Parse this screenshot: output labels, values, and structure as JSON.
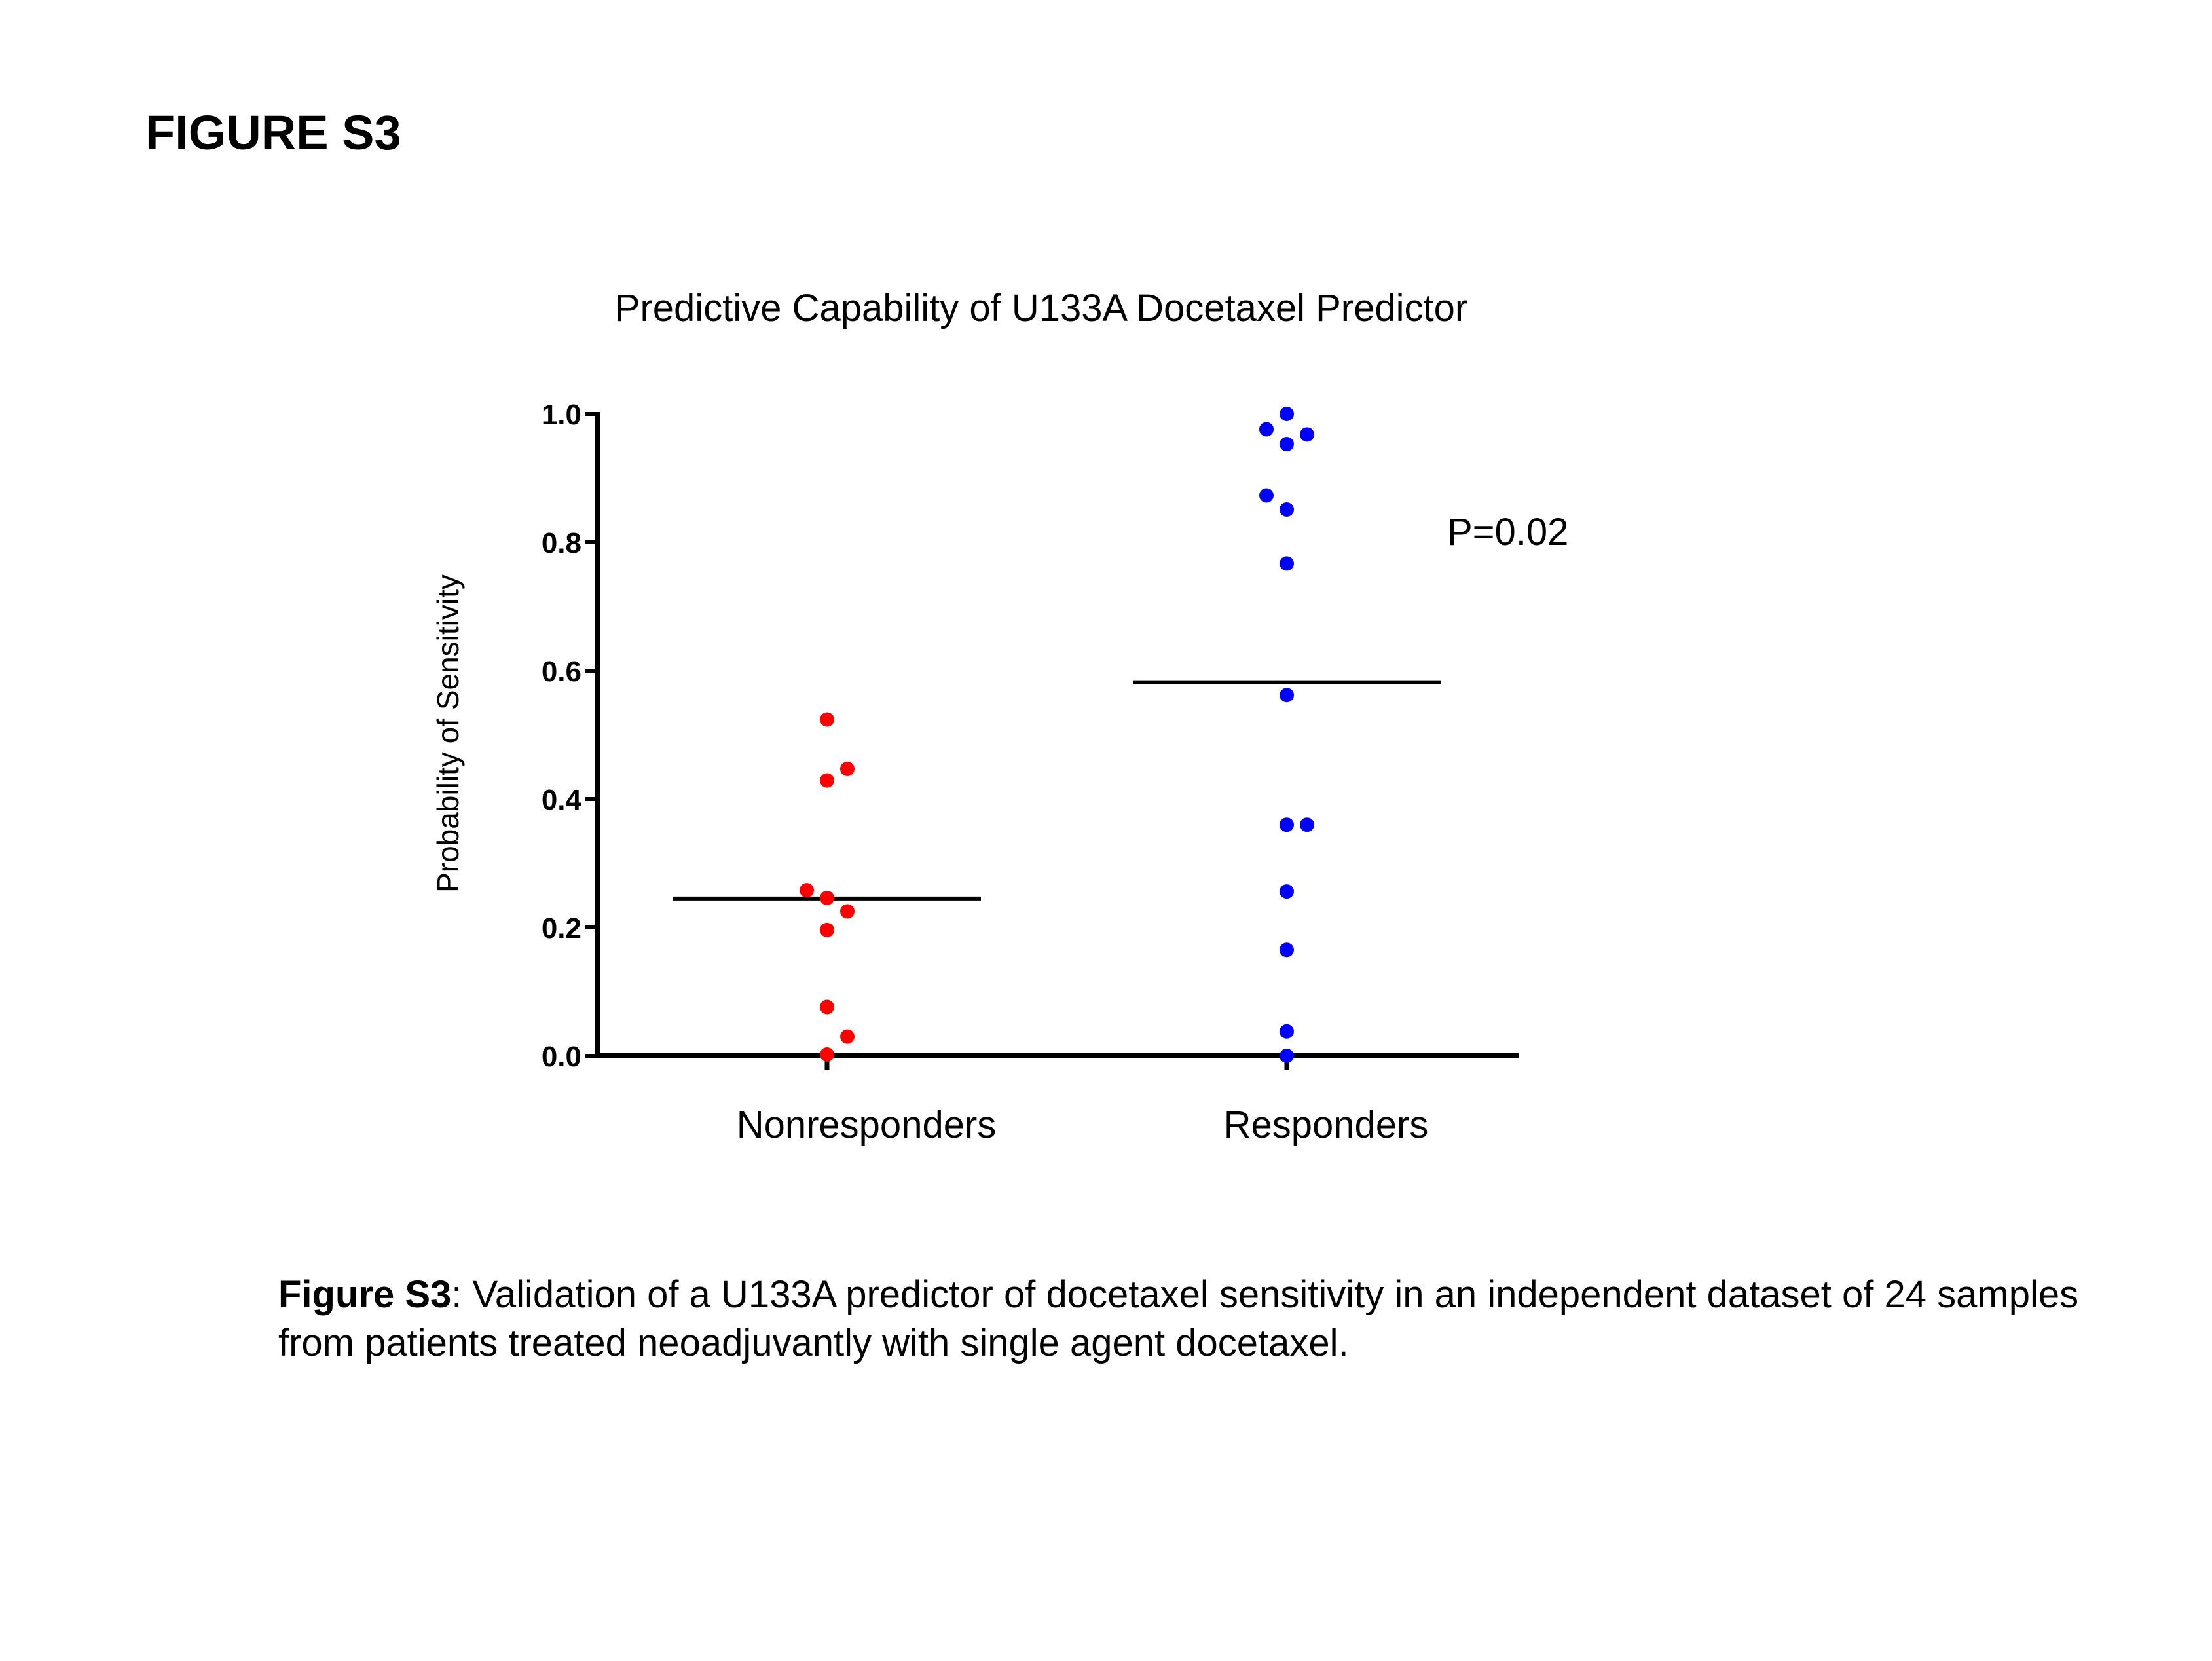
{
  "figure_label": "FIGURE S3",
  "caption": {
    "label": "Figure S3",
    "text": ": Validation of a U133A predictor of docetaxel sensitivity in an independent dataset of 24 samples from patients treated neoadjuvantly with single agent docetaxel."
  },
  "chart_data": {
    "type": "scatter",
    "title": "Predictive Capability of U133A Docetaxel Predictor",
    "xlabel": "",
    "ylabel": "Probability of Sensitivity",
    "categories": [
      "Nonresponders",
      "Responders"
    ],
    "ylim": [
      0.0,
      1.0
    ],
    "yticks": [
      "0.0",
      "0.2",
      "0.4",
      "0.6",
      "0.8",
      "1.0"
    ],
    "grid": false,
    "annotation": "P=0.02",
    "series": [
      {
        "name": "Nonresponders",
        "color": "#ff0000",
        "mean": 0.245,
        "points": [
          {
            "y": 0.524,
            "jitter": 0
          },
          {
            "y": 0.429,
            "jitter": 0
          },
          {
            "y": 0.447,
            "jitter": 1
          },
          {
            "y": 0.258,
            "jitter": -1
          },
          {
            "y": 0.246,
            "jitter": 0
          },
          {
            "y": 0.225,
            "jitter": 1
          },
          {
            "y": 0.196,
            "jitter": 0
          },
          {
            "y": 0.076,
            "jitter": 0
          },
          {
            "y": 0.03,
            "jitter": 1
          },
          {
            "y": 0.002,
            "jitter": 0
          }
        ]
      },
      {
        "name": "Responders",
        "color": "#0000ff",
        "mean": 0.582,
        "points": [
          {
            "y": 1.0,
            "jitter": 0
          },
          {
            "y": 0.976,
            "jitter": -1
          },
          {
            "y": 0.968,
            "jitter": 1
          },
          {
            "y": 0.953,
            "jitter": 0
          },
          {
            "y": 0.873,
            "jitter": -1
          },
          {
            "y": 0.851,
            "jitter": 0
          },
          {
            "y": 0.767,
            "jitter": 0
          },
          {
            "y": 0.562,
            "jitter": 0
          },
          {
            "y": 0.36,
            "jitter": 0
          },
          {
            "y": 0.36,
            "jitter": 1
          },
          {
            "y": 0.256,
            "jitter": 0
          },
          {
            "y": 0.165,
            "jitter": 0
          },
          {
            "y": 0.038,
            "jitter": 0
          },
          {
            "y": 0.0,
            "jitter": 0
          }
        ]
      }
    ]
  }
}
